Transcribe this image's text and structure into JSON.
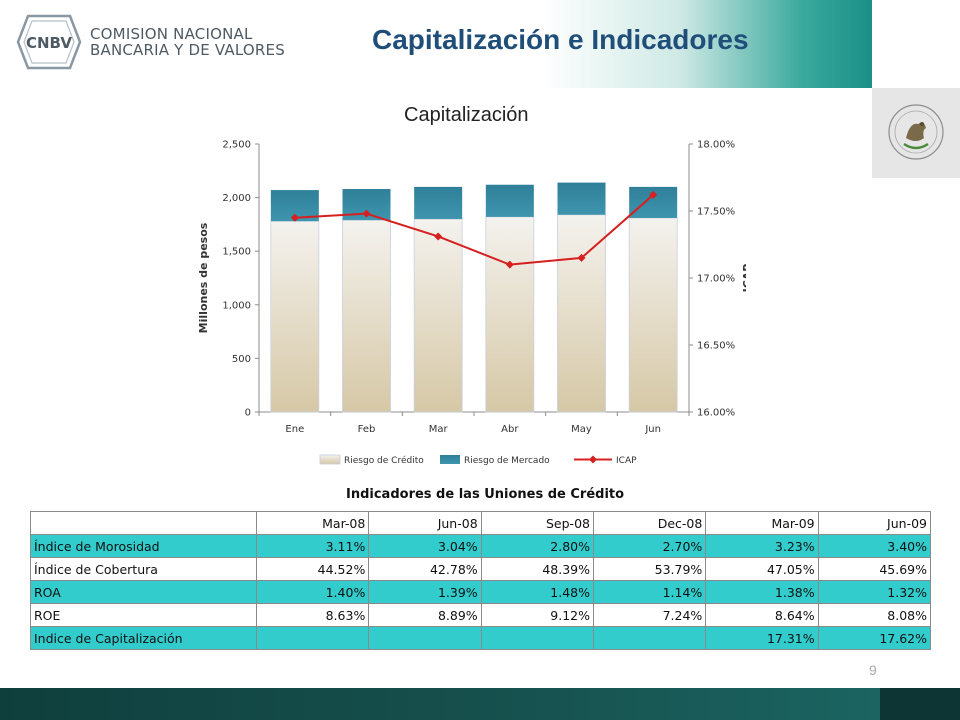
{
  "header": {
    "logo_mark": "CNBV",
    "org_line1": "COMISION NACIONAL",
    "org_line2": "BANCARIA Y DE VALORES",
    "title": "Capitalización e Indicadores"
  },
  "chart_data": {
    "type": "bar",
    "stacked": true,
    "title": "Capitalización",
    "categories": [
      "Ene",
      "Feb",
      "Mar",
      "Abr",
      "May",
      "Jun"
    ],
    "ylabel": "Millones de pesos",
    "y2label": "ICAP",
    "ylim": [
      0,
      2500
    ],
    "y2lim": [
      16.0,
      18.0
    ],
    "yticks": [
      "0",
      "500",
      "1,000",
      "1,500",
      "2,000",
      "2,500"
    ],
    "y2ticks": [
      "16.00%",
      "16.50%",
      "17.00%",
      "17.50%",
      "18.00%"
    ],
    "series": [
      {
        "name": "Riesgo de Crédito",
        "type": "bar",
        "values": [
          1780,
          1790,
          1800,
          1820,
          1840,
          1810
        ],
        "color": "#ddd2b8"
      },
      {
        "name": "Riesgo de Mercado",
        "type": "bar",
        "values": [
          290,
          290,
          300,
          300,
          300,
          290
        ],
        "color": "#3a8ea8"
      },
      {
        "name": "ICAP",
        "type": "line",
        "axis": "right",
        "values": [
          17.45,
          17.48,
          17.31,
          17.1,
          17.15,
          17.62
        ],
        "color": "#d62020"
      }
    ],
    "legend_position": "bottom",
    "grid": false
  },
  "table": {
    "title": "Indicadores de las Uniones de Crédito",
    "headers": [
      "",
      "Mar-08",
      "Jun-08",
      "Sep-08",
      "Dec-08",
      "Mar-09",
      "Jun-09"
    ],
    "rows": [
      {
        "label": "Índice de Morosidad",
        "values": [
          "3.11%",
          "3.04%",
          "2.80%",
          "2.70%",
          "3.23%",
          "3.40%"
        ]
      },
      {
        "label": "Índice de Cobertura",
        "values": [
          "44.52%",
          "42.78%",
          "48.39%",
          "53.79%",
          "47.05%",
          "45.69%"
        ]
      },
      {
        "label": "ROA",
        "values": [
          "1.40%",
          "1.39%",
          "1.48%",
          "1.14%",
          "1.38%",
          "1.32%"
        ]
      },
      {
        "label": "ROE",
        "values": [
          "8.63%",
          "8.89%",
          "9.12%",
          "7.24%",
          "8.64%",
          "8.08%"
        ]
      },
      {
        "label": "Indice de Capitalización",
        "values": [
          "",
          "",
          "",
          "",
          "17.31%",
          "17.62%"
        ]
      }
    ]
  },
  "page_number": "9",
  "colors": {
    "accent": "#1f4e79",
    "teal_row": "#33cccc",
    "footer": "#16504d"
  }
}
